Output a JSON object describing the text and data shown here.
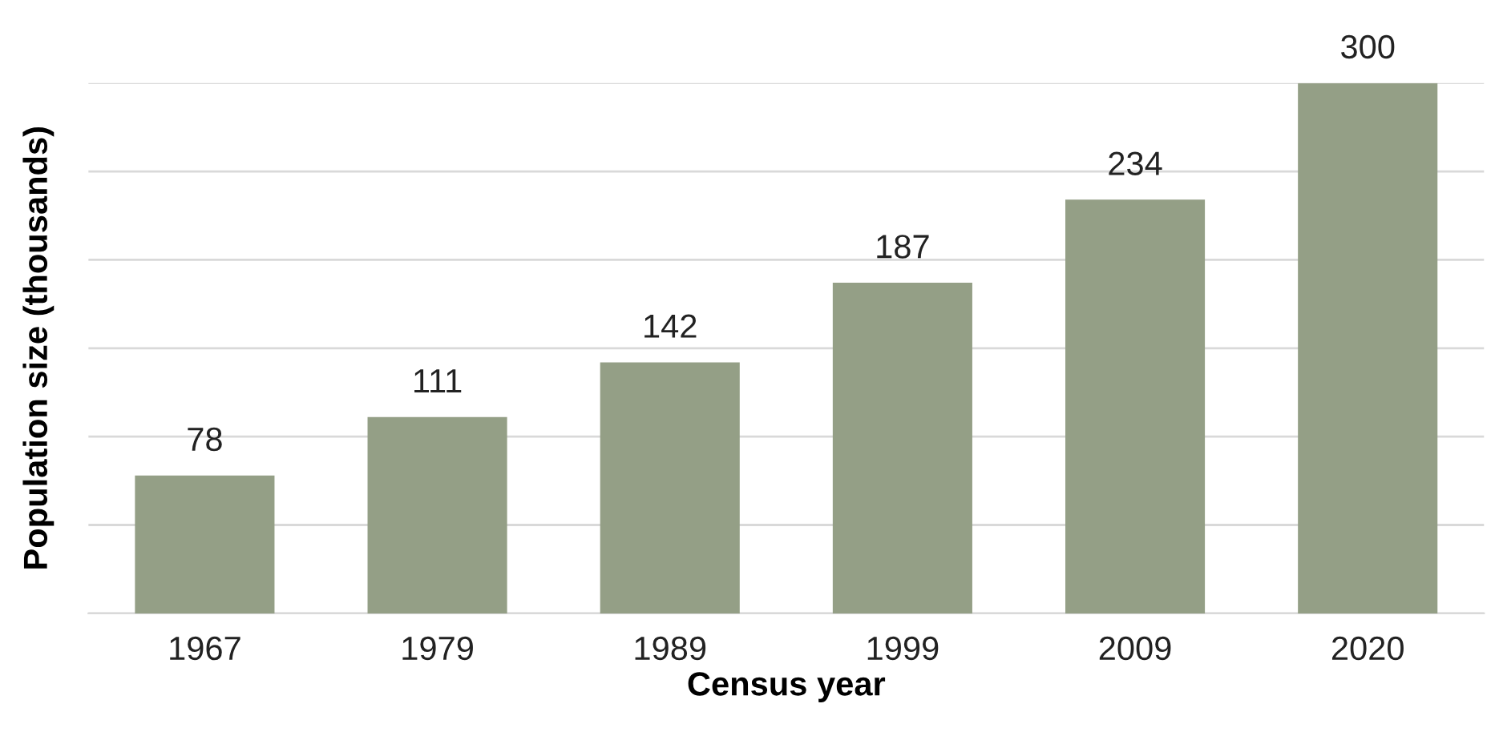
{
  "chart_data": {
    "type": "bar",
    "xlabel": "Census year",
    "ylabel": "Population size (thousands)",
    "categories": [
      "1967",
      "1979",
      "1989",
      "1999",
      "2009",
      "2020"
    ],
    "values": [
      78,
      111,
      142,
      187,
      234,
      300
    ],
    "color": "#949f86",
    "ylim": [
      0,
      300
    ],
    "yticks": [
      {
        "value": 0,
        "label": null
      },
      {
        "value": 50,
        "label": null
      },
      {
        "value": 100,
        "label": null
      },
      {
        "value": 150,
        "label": null
      },
      {
        "value": 200,
        "label": null
      },
      {
        "value": 250,
        "label": null
      },
      {
        "value": 300,
        "label": null
      }
    ],
    "tick_labels": "x",
    "grid": "y",
    "data_labels": true,
    "legend": false
  }
}
